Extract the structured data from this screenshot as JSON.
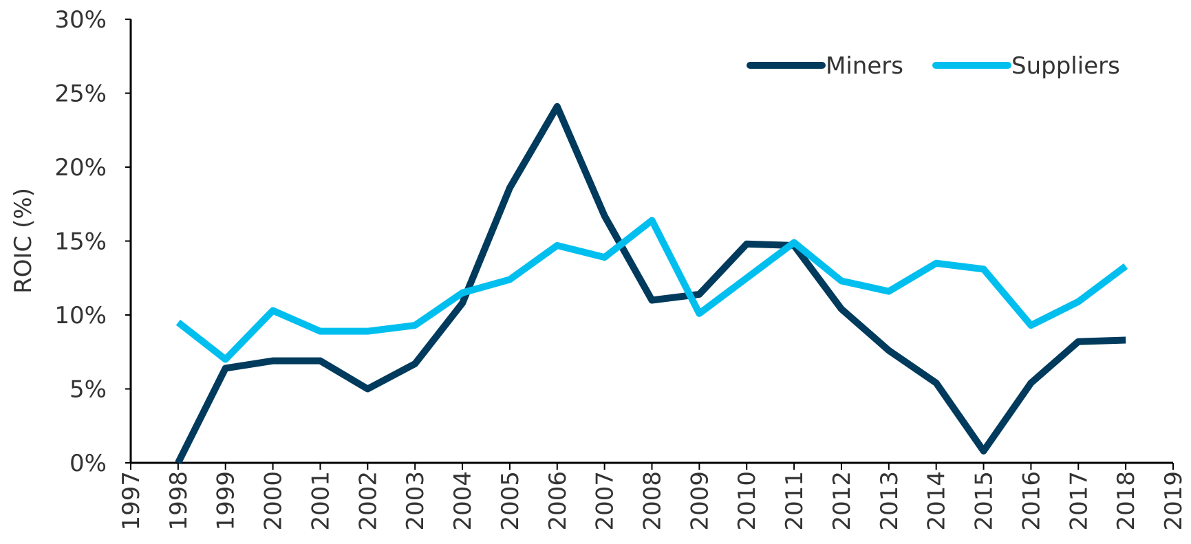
{
  "chart_data": {
    "type": "line",
    "ylabel": "ROIC (%)",
    "x": [
      1998,
      1999,
      2000,
      2001,
      2002,
      2003,
      2004,
      2005,
      2006,
      2007,
      2008,
      2009,
      2010,
      2011,
      2012,
      2013,
      2014,
      2015,
      2016,
      2017,
      2018
    ],
    "series": [
      {
        "name": "Miners",
        "color": "#003a5c",
        "values": [
          0,
          6.4,
          6.9,
          6.9,
          5.0,
          6.7,
          10.8,
          18.6,
          24.1,
          16.7,
          11.0,
          11.4,
          14.8,
          14.7,
          10.4,
          7.6,
          5.4,
          0.8,
          5.4,
          8.2,
          8.3
        ]
      },
      {
        "name": "Suppliers",
        "color": "#00bfef",
        "values": [
          9.5,
          7.0,
          10.3,
          8.9,
          8.9,
          9.3,
          11.5,
          12.4,
          14.7,
          13.9,
          16.4,
          10.1,
          12.5,
          14.9,
          12.3,
          11.6,
          13.5,
          13.1,
          9.3,
          10.9,
          13.3
        ]
      }
    ],
    "xlim": [
      1997,
      2019
    ],
    "xticks": [
      1997,
      1998,
      1999,
      2000,
      2001,
      2002,
      2003,
      2004,
      2005,
      2006,
      2007,
      2008,
      2009,
      2010,
      2011,
      2012,
      2013,
      2014,
      2015,
      2016,
      2017,
      2018,
      2019
    ],
    "ylim": [
      0,
      30
    ],
    "yticks": [
      {
        "value": 0,
        "label": "0%"
      },
      {
        "value": 5,
        "label": "5%"
      },
      {
        "value": 10,
        "label": "10%"
      },
      {
        "value": 15,
        "label": "15%"
      },
      {
        "value": 20,
        "label": "20%"
      },
      {
        "value": 25,
        "label": "25%"
      },
      {
        "value": 30,
        "label": "30%"
      }
    ],
    "legend": "upper right",
    "grid": false
  }
}
